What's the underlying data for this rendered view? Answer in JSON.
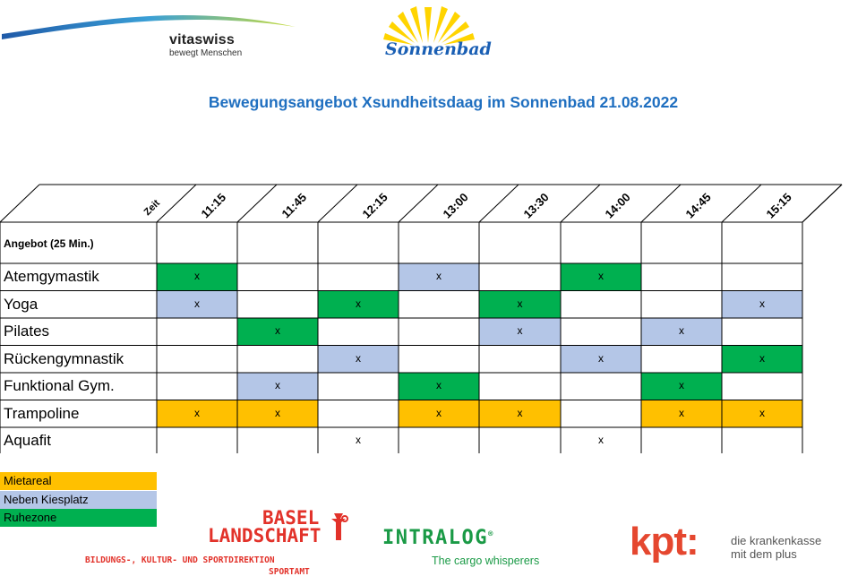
{
  "logos": {
    "vitaswiss_name": "vitaswiss",
    "vitaswiss_tagline": "bewegt Menschen",
    "sonnenbad": "Sonnenbad"
  },
  "title": "Bewegungsangebot  Xsundheitsdaag im Sonnenbad 21.08.2022",
  "table": {
    "zeit_label": "Zeit",
    "times": [
      "11:15",
      "11:45",
      "12:15",
      "13:00",
      "13:30",
      "14:00",
      "14:45",
      "15:15"
    ],
    "header_label": "Angebot (25 Min.)",
    "mark": "x",
    "rows": [
      {
        "label": "Atemgymastik",
        "cells": [
          "G",
          "",
          "",
          "B",
          "",
          "G",
          "",
          ""
        ],
        "marks": [
          1,
          0,
          0,
          1,
          0,
          1,
          0,
          0
        ]
      },
      {
        "label": "Yoga",
        "cells": [
          "B",
          "",
          "G",
          "",
          "G",
          "",
          "",
          "B"
        ],
        "marks": [
          1,
          0,
          1,
          0,
          1,
          0,
          0,
          1
        ]
      },
      {
        "label": "Pilates",
        "cells": [
          "",
          "G",
          "",
          "",
          "B",
          "",
          "B",
          ""
        ],
        "marks": [
          0,
          1,
          0,
          0,
          1,
          0,
          1,
          0
        ]
      },
      {
        "label": "Rückengymnastik",
        "cells": [
          "",
          "",
          "B",
          "",
          "",
          "B",
          "",
          "G"
        ],
        "marks": [
          0,
          0,
          1,
          0,
          0,
          1,
          0,
          1
        ]
      },
      {
        "label": "Funktional Gym.",
        "cells": [
          "",
          "B",
          "",
          "G",
          "",
          "",
          "G",
          ""
        ],
        "marks": [
          0,
          1,
          0,
          1,
          0,
          0,
          1,
          0
        ]
      },
      {
        "label": "Trampoline",
        "cells": [
          "O",
          "O",
          "",
          "O",
          "O",
          "",
          "O",
          "O"
        ],
        "marks": [
          1,
          1,
          0,
          1,
          1,
          0,
          1,
          1
        ]
      },
      {
        "label": "Aquafit",
        "cells": [
          "",
          "",
          "",
          "",
          "",
          "",
          "",
          ""
        ],
        "marks": [
          0,
          0,
          1,
          0,
          0,
          1,
          0,
          0
        ]
      }
    ]
  },
  "colors": {
    "O": "#ffc000",
    "B": "#b4c6e7",
    "G": "#00b050"
  },
  "legend": [
    {
      "label": "Mietareal",
      "color": "#ffc000"
    },
    {
      "label": "Neben Kiesplatz",
      "color": "#b4c6e7"
    },
    {
      "label": "Ruhezone",
      "color": "#00b050"
    }
  ],
  "sponsors": {
    "bl_line1": "BASEL",
    "bl_line2": "LANDSCHAFT",
    "bl_sub1": "BILDUNGS-, KULTUR- UND SPORTDIREKTION",
    "bl_sub2": "SPORTAMT",
    "intralog": "INTRALOG",
    "intralog_reg": "®",
    "intralog_sub": "The cargo whisperers",
    "kpt": "kpt:",
    "kpt_sub1": "die krankenkasse",
    "kpt_sub2": "mit dem plus"
  }
}
